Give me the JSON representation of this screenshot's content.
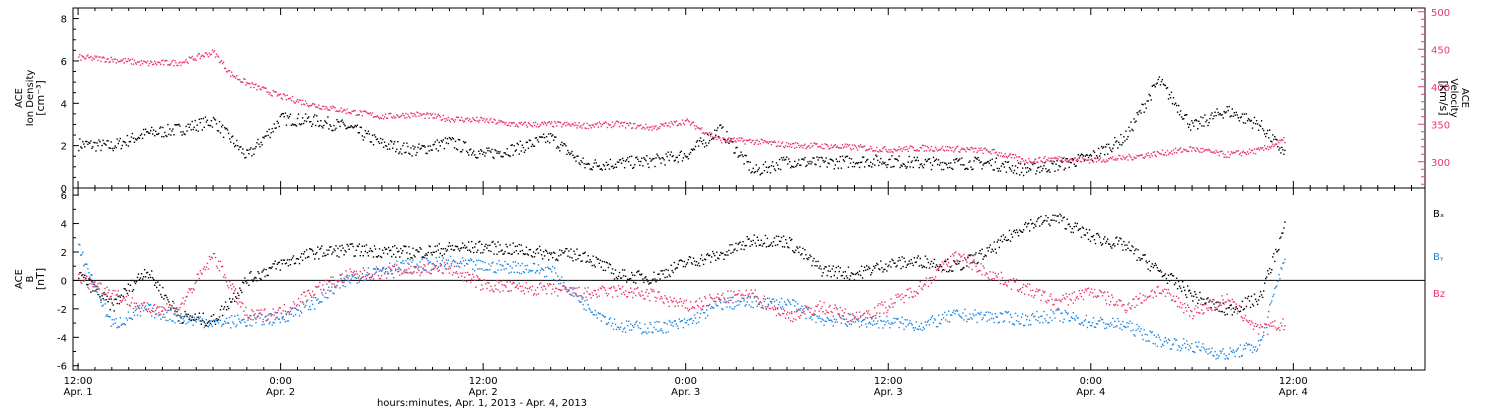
{
  "colors": {
    "black": "#000000",
    "pink": "#e8386a",
    "blue": "#1f86e0",
    "axis": "#000000"
  },
  "xaxis": {
    "label": "hours:minutes, Apr.  1, 2013 - Apr.  4, 2013",
    "ticks": [
      {
        "t": 0,
        "time": "12:00",
        "date": "Apr. 1"
      },
      {
        "t": 12,
        "time": "0:00",
        "date": "Apr. 2"
      },
      {
        "t": 24,
        "time": "12:00",
        "date": "Apr. 2"
      },
      {
        "t": 36,
        "time": "0:00",
        "date": "Apr. 3"
      },
      {
        "t": 48,
        "time": "12:00",
        "date": "Apr. 3"
      },
      {
        "t": 60,
        "time": "0:00",
        "date": "Apr. 4"
      },
      {
        "t": 72,
        "time": "12:00",
        "date": "Apr. 4"
      }
    ],
    "range_hours": [
      -0.3,
      79.8
    ],
    "minor_step_hours": 1
  },
  "chart_data": [
    {
      "type": "scatter",
      "title": "",
      "ylabel_left": [
        "ACE",
        "Ion Density",
        "[cm⁻³]"
      ],
      "ylabel_right": [
        "ACE",
        "Velocity",
        "[km/s]"
      ],
      "ylim_left": [
        0,
        8.5
      ],
      "yticks_left": [
        0,
        2,
        4,
        6,
        8
      ],
      "ylim_right": [
        265,
        505
      ],
      "yticks_right": [
        300,
        350,
        400,
        450,
        500
      ],
      "series": [
        {
          "axis": "left",
          "color_key": "black",
          "x": [
            0,
            2,
            4,
            6,
            8,
            10,
            12,
            14,
            16,
            18,
            20,
            22,
            24,
            26,
            28,
            30,
            32,
            34,
            36,
            38,
            40,
            42,
            44,
            46,
            48,
            50,
            52,
            54,
            56,
            58,
            60,
            62,
            64,
            66,
            68,
            70,
            71.5
          ],
          "y": [
            2.1,
            2.0,
            2.6,
            2.8,
            3.2,
            1.5,
            3.3,
            3.2,
            2.9,
            2.1,
            1.8,
            2.2,
            1.6,
            1.9,
            2.4,
            1.1,
            1.2,
            1.3,
            1.6,
            2.8,
            0.8,
            1.3,
            1.2,
            1.3,
            1.3,
            1.2,
            1.2,
            1.2,
            0.9,
            1.1,
            1.5,
            2.4,
            5.1,
            2.9,
            3.7,
            3.0,
            1.6
          ]
        },
        {
          "axis": "right",
          "color_key": "pink",
          "x": [
            0,
            2,
            4,
            6,
            8,
            9,
            10,
            12,
            14,
            16,
            18,
            20,
            22,
            24,
            26,
            28,
            30,
            32,
            34,
            36,
            38,
            40,
            42,
            44,
            46,
            48,
            50,
            52,
            54,
            55.5,
            56,
            58,
            60,
            62,
            64,
            66,
            68,
            70,
            71.5
          ],
          "y": [
            440,
            437,
            432,
            433,
            447,
            418,
            405,
            388,
            376,
            368,
            361,
            364,
            358,
            356,
            350,
            351,
            349,
            351,
            346,
            355,
            330,
            328,
            323,
            322,
            320,
            317,
            319,
            318,
            315,
            306,
            302,
            305,
            303,
            306,
            312,
            318,
            310,
            316,
            330
          ]
        }
      ]
    },
    {
      "type": "scatter",
      "title": "",
      "ylabel_left": [
        "ACE",
        "B",
        "[nT]"
      ],
      "ylim": [
        -6.3,
        6.5
      ],
      "yticks": [
        -6,
        -4,
        -2,
        0,
        2,
        4,
        6
      ],
      "zero_line": true,
      "series": [
        {
          "name": "Bₓ",
          "color_key": "black",
          "x": [
            0,
            2,
            4,
            6,
            8,
            10,
            12,
            14,
            16,
            18,
            20,
            22,
            24,
            26,
            28,
            30,
            32,
            34,
            36,
            38,
            40,
            42,
            44,
            46,
            48,
            50,
            52,
            54,
            56,
            58,
            60,
            62,
            64,
            66,
            68,
            70,
            71.5
          ],
          "y": [
            0.5,
            -1.8,
            0.8,
            -2.5,
            -2.8,
            0.1,
            1.2,
            2.0,
            2.2,
            2.1,
            2.0,
            2.3,
            2.4,
            2.2,
            1.9,
            1.8,
            0.4,
            0.2,
            1.3,
            1.8,
            2.9,
            2.8,
            0.8,
            0.5,
            1.2,
            1.4,
            1.0,
            2.1,
            3.9,
            4.4,
            3.1,
            2.5,
            0.7,
            -1.0,
            -2.1,
            -1.2,
            4.0
          ]
        },
        {
          "name": "Bᵧ",
          "color_key": "blue",
          "x": [
            0,
            2,
            4,
            6,
            8,
            10,
            12,
            14,
            16,
            18,
            20,
            22,
            24,
            26,
            28,
            30,
            32,
            34,
            36,
            38,
            40,
            42,
            44,
            46,
            48,
            50,
            52,
            54,
            56,
            58,
            60,
            62,
            64,
            66,
            68,
            70,
            71.5
          ],
          "y": [
            2.3,
            -3.1,
            -2.0,
            -2.6,
            -2.9,
            -2.8,
            -2.6,
            -1.5,
            0.1,
            0.9,
            1.1,
            1.3,
            1.0,
            1.0,
            0.7,
            -1.6,
            -3.2,
            -3.3,
            -3.0,
            -1.6,
            -1.5,
            -1.6,
            -2.7,
            -2.8,
            -2.9,
            -3.1,
            -2.4,
            -2.5,
            -2.7,
            -2.4,
            -2.9,
            -3.1,
            -4.2,
            -4.6,
            -5.2,
            -4.5,
            2.0
          ]
        },
        {
          "name": "Bz",
          "color_key": "pink",
          "x": [
            0,
            2,
            4,
            6,
            8,
            10,
            12,
            14,
            16,
            18,
            20,
            22,
            24,
            26,
            28,
            30,
            32,
            34,
            36,
            38,
            40,
            42,
            44,
            46,
            48,
            50,
            52,
            54,
            56,
            58,
            60,
            62,
            64,
            66,
            68,
            70,
            71.5
          ],
          "y": [
            0.2,
            -0.8,
            -2.0,
            -1.8,
            1.8,
            -2.5,
            -2.2,
            -0.6,
            0.4,
            0.6,
            0.8,
            0.9,
            -0.3,
            -0.5,
            -0.6,
            -0.9,
            -0.7,
            -1.0,
            -1.8,
            -1.2,
            -1.0,
            -2.5,
            -1.8,
            -2.6,
            -1.7,
            -0.3,
            1.8,
            0.5,
            -0.5,
            -1.5,
            -0.7,
            -1.8,
            -0.6,
            -2.2,
            -1.3,
            -3.5,
            -3.0
          ]
        }
      ]
    }
  ]
}
